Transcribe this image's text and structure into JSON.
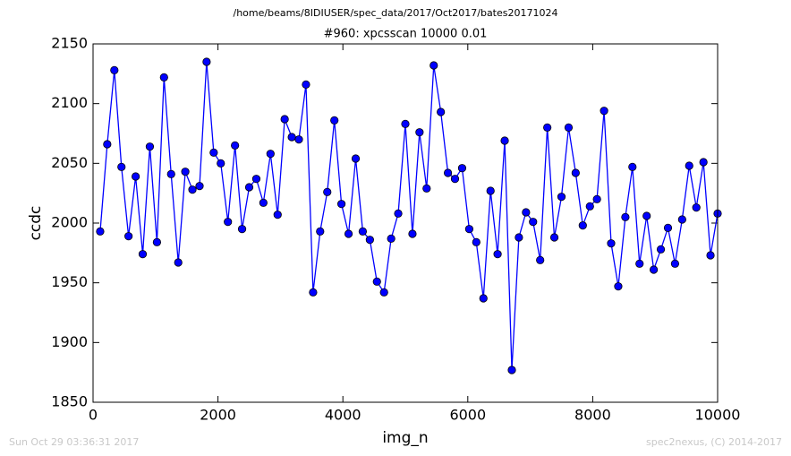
{
  "chart_data": {
    "type": "line",
    "suptitle": "/home/beams/8IDIUSER/spec_data/2017/Oct2017/bates20171024",
    "title": "#960: xpcsscan 10000 0.01",
    "xlabel": "img_n",
    "ylabel": "ccdc",
    "footer_left": "Sun Oct 29 03:36:31 2017",
    "footer_right": "spec2nexus, (C) 2014-2017",
    "x": [
      114,
      227,
      341,
      455,
      568,
      682,
      795,
      909,
      1023,
      1136,
      1250,
      1364,
      1477,
      1591,
      1705,
      1818,
      1932,
      2045,
      2159,
      2273,
      2386,
      2500,
      2614,
      2727,
      2841,
      2955,
      3068,
      3182,
      3295,
      3409,
      3523,
      3636,
      3750,
      3864,
      3977,
      4091,
      4205,
      4318,
      4432,
      4545,
      4659,
      4773,
      4886,
      5000,
      5114,
      5227,
      5341,
      5455,
      5568,
      5682,
      5795,
      5909,
      6023,
      6136,
      6250,
      6364,
      6477,
      6591,
      6705,
      6818,
      6932,
      7045,
      7159,
      7273,
      7386,
      7500,
      7614,
      7727,
      7841,
      7955,
      8068,
      8182,
      8295,
      8409,
      8523,
      8636,
      8750,
      8864,
      8977,
      9091,
      9205,
      9318,
      9432,
      9545,
      9659,
      9773,
      9886,
      10000
    ],
    "series": [
      {
        "name": "ccdc",
        "color": "#0000ff",
        "marker_edge": "#000000",
        "values": [
          1993,
          2066,
          2128,
          2047,
          1989,
          2039,
          1974,
          2064,
          1984,
          2122,
          2041,
          1967,
          2043,
          2028,
          2031,
          2135,
          2059,
          2050,
          2001,
          2065,
          1995,
          2030,
          2037,
          2017,
          2058,
          2007,
          2087,
          2072,
          2070,
          2116,
          1942,
          1993,
          2026,
          2086,
          2016,
          1991,
          2054,
          1993,
          1986,
          1951,
          1942,
          1987,
          2008,
          2083,
          1991,
          2076,
          2029,
          2132,
          2093,
          2042,
          2037,
          2046,
          1995,
          1984,
          1937,
          2027,
          1974,
          2069,
          1877,
          1988,
          2009,
          2001,
          1969,
          2080,
          1988,
          2022,
          2080,
          2042,
          1998,
          2014,
          2020,
          2094,
          1983,
          1947,
          2005,
          2047,
          1966,
          2006,
          1961,
          1978,
          1996,
          1966,
          2003,
          2048,
          2013,
          2051,
          1973,
          2008
        ]
      }
    ],
    "xlim": [
      0,
      10000
    ],
    "xticks": [
      0,
      2000,
      4000,
      6000,
      8000,
      10000
    ],
    "ylim": [
      1850,
      2150
    ],
    "yticks": [
      1850,
      1900,
      1950,
      2000,
      2050,
      2100,
      2150
    ],
    "grid": false
  }
}
